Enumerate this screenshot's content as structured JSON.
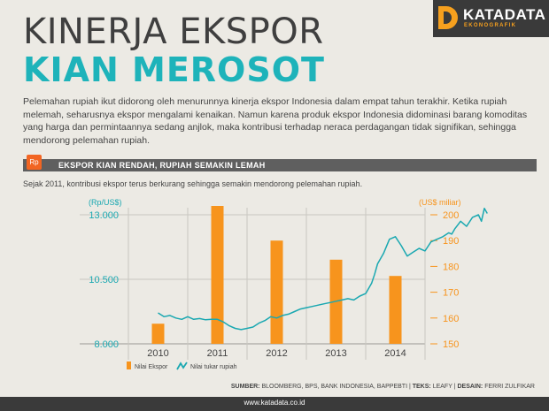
{
  "header": {
    "title_line1": "KINERJA EKSPOR",
    "title_line2": "KIAN MEROSOT",
    "logo_name": "KATADATA",
    "logo_sub": "EKONOGRAFIK"
  },
  "intro": "Pelemahan rupiah ikut didorong oleh menurunnya kinerja ekspor Indonesia dalam empat tahun terakhir. Ketika rupiah melemah, seharusnya ekspor mengalami kenaikan. Namun karena produk ekspor Indonesia didominasi barang komoditas yang harga dan permintaannya sedang anjlok, maka kontribusi terhadap neraca perdagangan tidak signifikan, sehingga mendorong pelemahan rupiah.",
  "section": {
    "icon_label": "Rp",
    "title": "EKSPOR KIAN RENDAH, RUPIAH SEMAKIN LEMAH",
    "caption": "Sejak 2011, kontribusi ekspor terus berkurang sehingga semakin mendorong pelemahan rupiah."
  },
  "chart_data": {
    "type": "bar",
    "categories": [
      "2010",
      "2011",
      "2012",
      "2013",
      "2014"
    ],
    "left_axis": {
      "unit": "(Rp/US$)",
      "ticks": [
        "13.000",
        "10.500",
        "8.000"
      ],
      "range": [
        8000,
        13000
      ]
    },
    "right_axis": {
      "unit": "(US$ miliar)",
      "ticks": [
        "200",
        "190",
        "180",
        "170",
        "160",
        "150"
      ],
      "range": [
        150,
        200
      ]
    },
    "bars": {
      "name": "Nilai Ekspor",
      "axis": "right",
      "values": [
        157.8,
        203.5,
        190.0,
        182.6,
        176.3
      ]
    },
    "line": {
      "name": "Nilai tukar rupiah",
      "axis": "left",
      "x": [
        2010.0,
        2010.1,
        2010.2,
        2010.3,
        2010.4,
        2010.5,
        2010.6,
        2010.7,
        2010.8,
        2010.9,
        2011.0,
        2011.1,
        2011.2,
        2011.3,
        2011.4,
        2011.5,
        2011.6,
        2011.7,
        2011.8,
        2011.9,
        2012.0,
        2012.1,
        2012.2,
        2012.3,
        2012.4,
        2012.5,
        2012.6,
        2012.7,
        2012.8,
        2012.9,
        2013.0,
        2013.1,
        2013.2,
        2013.3,
        2013.4,
        2013.5,
        2013.6,
        2013.65,
        2013.7,
        2013.8,
        2013.9,
        2014.0,
        2014.1,
        2014.2,
        2014.3,
        2014.4,
        2014.5,
        2014.6,
        2014.7,
        2014.8,
        2014.9,
        2014.95,
        2015.0,
        2015.1,
        2015.2,
        2015.3,
        2015.4,
        2015.45,
        2015.5,
        2015.55
      ],
      "values": [
        9200,
        9050,
        9100,
        9000,
        8950,
        9050,
        8950,
        8980,
        8930,
        8950,
        8950,
        8850,
        8700,
        8600,
        8550,
        8600,
        8650,
        8800,
        8900,
        9050,
        9000,
        9100,
        9150,
        9250,
        9350,
        9400,
        9450,
        9500,
        9550,
        9600,
        9650,
        9700,
        9750,
        9700,
        9850,
        9950,
        10350,
        10700,
        11100,
        11500,
        12050,
        12150,
        11800,
        11400,
        11550,
        11700,
        11600,
        11950,
        12050,
        12150,
        12300,
        12250,
        12450,
        12750,
        12550,
        12900,
        13000,
        12750,
        13250,
        13050
      ]
    },
    "xlabel": "",
    "ylabel": "",
    "grid": true,
    "legend": "bottom-left"
  },
  "legend": {
    "bar_label": "Nilai Ekspor",
    "line_label": "Nilai tukar rupiah"
  },
  "sources": {
    "src_label": "SUMBER:",
    "src_value": "BLOOMBERG, BPS, BANK INDONESIA, BAPPEBTI",
    "teks_label": "TEKS:",
    "teks_value": "LEAFY",
    "desain_label": "DESAIN:",
    "desain_value": "FERRI ZULFIKAR"
  },
  "footer": {
    "url": "www.katadata.co.id"
  },
  "colors": {
    "accent": "#1eb3ba",
    "bar": "#f7941d",
    "line": "#1aa8b1",
    "dark": "#3a3a3a"
  }
}
